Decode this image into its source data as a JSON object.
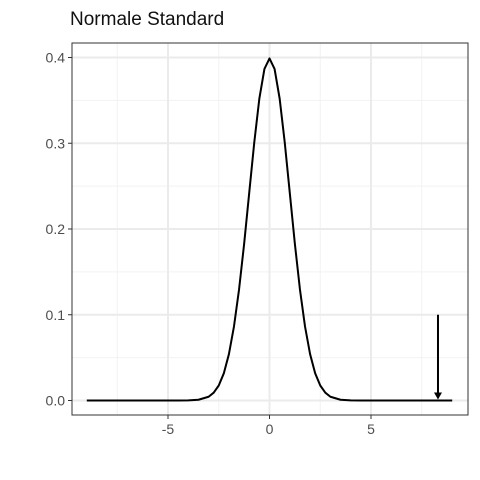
{
  "chart_data": {
    "type": "line",
    "title": "Normale Standard",
    "xlabel": "",
    "ylabel": "",
    "xlim": [
      -9.0,
      9.0
    ],
    "ylim": [
      0.0,
      0.4
    ],
    "x_ticks": [
      -5,
      0,
      5
    ],
    "y_ticks": [
      0.0,
      0.1,
      0.2,
      0.3,
      0.4
    ],
    "x_tick_labels": [
      "-5",
      "0",
      "5"
    ],
    "y_tick_labels": [
      "0.0",
      "0.1",
      "0.2",
      "0.3",
      "0.4"
    ],
    "grid": true,
    "series": [
      {
        "x": [
          -9.0,
          -8.5,
          -8.0,
          -7.5,
          -7.0,
          -6.5,
          -6.0,
          -5.5,
          -5.0,
          -4.5,
          -4.0,
          -3.5,
          -3.0,
          -2.75,
          -2.5,
          -2.25,
          -2.0,
          -1.75,
          -1.5,
          -1.25,
          -1.0,
          -0.75,
          -0.5,
          -0.25,
          0.0,
          0.25,
          0.5,
          0.75,
          1.0,
          1.25,
          1.5,
          1.75,
          2.0,
          2.25,
          2.5,
          2.75,
          3.0,
          3.5,
          4.0,
          4.5,
          5.0,
          5.5,
          6.0,
          6.5,
          7.0,
          7.5,
          8.0,
          8.5,
          9.0
        ],
        "y": [
          0.0,
          0.0,
          0.0,
          0.0,
          0.0,
          0.0,
          0.0,
          0.0,
          0.0,
          0.0,
          0.0001,
          0.0009,
          0.0044,
          0.0091,
          0.0175,
          0.0317,
          0.054,
          0.0863,
          0.1295,
          0.1826,
          0.242,
          0.3011,
          0.3521,
          0.3867,
          0.3989,
          0.3867,
          0.3521,
          0.3011,
          0.242,
          0.1826,
          0.1295,
          0.0863,
          0.054,
          0.0317,
          0.0175,
          0.0091,
          0.0044,
          0.0009,
          0.0001,
          0.0,
          0.0,
          0.0,
          0.0,
          0.0,
          0.0,
          0.0,
          0.0,
          0.0,
          0.0
        ],
        "color": "#000000"
      }
    ],
    "annotations": [
      {
        "type": "arrow",
        "x": 8.3,
        "y_start": 0.1,
        "y_end": 0.0,
        "color": "#000000"
      }
    ]
  }
}
